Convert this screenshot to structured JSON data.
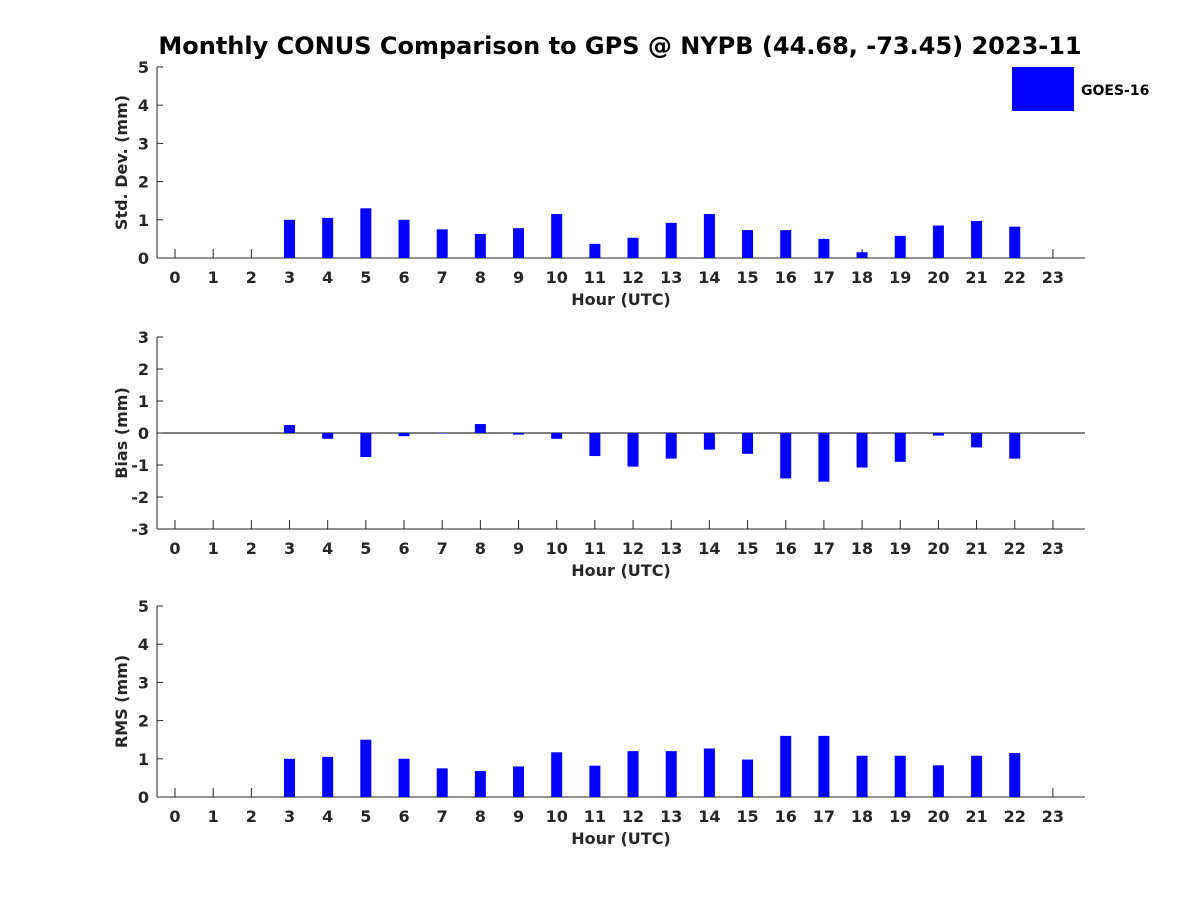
{
  "chart_data": {
    "title": "Monthly CONUS Comparison to GPS @ NYPB (44.68, -73.45) 2023-11",
    "type": "bar",
    "legend": {
      "entries": [
        "GOES-16"
      ],
      "placement": "top-right",
      "color": "#0000ff"
    },
    "bar_color": "#0000ff",
    "grid": false,
    "panels": [
      {
        "ylabel": "Std. Dev. (mm)",
        "xlabel": "Hour (UTC)",
        "ylim": [
          0,
          5
        ],
        "yticks": [
          0,
          1,
          2,
          3,
          4,
          5
        ],
        "x": [
          0,
          1,
          2,
          3,
          4,
          5,
          6,
          7,
          8,
          9,
          10,
          11,
          12,
          13,
          14,
          15,
          16,
          17,
          18,
          19,
          20,
          21,
          22,
          23
        ],
        "series": [
          {
            "name": "GOES-16",
            "values": [
              null,
              null,
              null,
              1.0,
              1.05,
              1.3,
              1.0,
              0.75,
              0.63,
              0.78,
              1.15,
              0.37,
              0.53,
              0.92,
              1.15,
              0.73,
              0.73,
              0.5,
              0.15,
              0.58,
              0.85,
              0.97,
              0.82,
              null
            ]
          }
        ]
      },
      {
        "ylabel": "Bias (mm)",
        "xlabel": "Hour (UTC)",
        "ylim": [
          -3,
          3
        ],
        "yticks": [
          -3,
          -2,
          -1,
          0,
          1,
          2,
          3
        ],
        "x": [
          0,
          1,
          2,
          3,
          4,
          5,
          6,
          7,
          8,
          9,
          10,
          11,
          12,
          13,
          14,
          15,
          16,
          17,
          18,
          19,
          20,
          21,
          22,
          23
        ],
        "series": [
          {
            "name": "GOES-16",
            "values": [
              null,
              null,
              null,
              0.25,
              -0.18,
              -0.75,
              -0.1,
              0.0,
              0.28,
              -0.05,
              -0.18,
              -0.72,
              -1.05,
              -0.8,
              -0.52,
              -0.65,
              -1.42,
              -1.52,
              -1.08,
              -0.9,
              -0.08,
              -0.45,
              -0.8,
              null
            ]
          }
        ]
      },
      {
        "ylabel": "RMS (mm)",
        "xlabel": "Hour (UTC)",
        "ylim": [
          0,
          5
        ],
        "yticks": [
          0,
          1,
          2,
          3,
          4,
          5
        ],
        "x": [
          0,
          1,
          2,
          3,
          4,
          5,
          6,
          7,
          8,
          9,
          10,
          11,
          12,
          13,
          14,
          15,
          16,
          17,
          18,
          19,
          20,
          21,
          22,
          23
        ],
        "series": [
          {
            "name": "GOES-16",
            "values": [
              null,
              null,
              null,
              1.0,
              1.05,
              1.5,
              1.0,
              0.75,
              0.68,
              0.8,
              1.17,
              0.82,
              1.2,
              1.2,
              1.27,
              0.98,
              1.6,
              1.6,
              1.08,
              1.08,
              0.83,
              1.08,
              1.15,
              null
            ]
          }
        ]
      }
    ]
  }
}
